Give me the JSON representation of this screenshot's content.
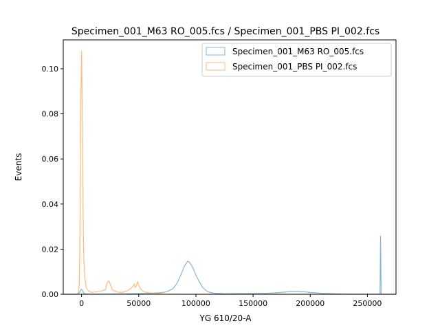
{
  "chart_data": {
    "type": "line",
    "title": "Specimen_001_M63 RO_005.fcs / Specimen_001_PBS PI_002.fcs",
    "xlabel": "YG 610/20-A",
    "ylabel": "Events",
    "xlim": [
      -16000,
      275000
    ],
    "ylim": [
      0,
      0.1128
    ],
    "xticks": [
      0,
      50000,
      100000,
      150000,
      200000,
      250000
    ],
    "xtick_labels": [
      "0",
      "50000",
      "100000",
      "150000",
      "200000",
      "250000"
    ],
    "yticks": [
      0,
      0.02,
      0.04,
      0.06,
      0.08,
      0.1
    ],
    "ytick_labels": [
      "0.00",
      "0.02",
      "0.04",
      "0.06",
      "0.08",
      "0.10"
    ],
    "grid": false,
    "legend_position": "top-right",
    "series": [
      {
        "name": "Specimen_001_M63 RO_005.fcs",
        "color": "#1f77b4",
        "x": [
          -16000,
          -4000,
          -2000,
          -1000,
          0,
          1000,
          2000,
          4000,
          8000,
          20000,
          40000,
          60000,
          70000,
          75000,
          80000,
          83000,
          86000,
          88000,
          90000,
          92000,
          93000,
          94000,
          96000,
          98000,
          100000,
          103000,
          106000,
          110000,
          115000,
          125000,
          140000,
          150000,
          160000,
          170000,
          178000,
          185000,
          190000,
          195000,
          200000,
          210000,
          230000,
          250000,
          260000,
          261000,
          261500,
          262000,
          262500,
          275000
        ],
        "y": [
          0,
          0,
          0.0006,
          0.0016,
          0.0022,
          0.0014,
          0.0004,
          0.0001,
          5e-05,
          0.0001,
          0.0002,
          0.0004,
          0.0007,
          0.0012,
          0.0025,
          0.0045,
          0.0075,
          0.01,
          0.0125,
          0.014,
          0.0147,
          0.0143,
          0.013,
          0.011,
          0.0085,
          0.0055,
          0.003,
          0.0012,
          0.0005,
          0.0002,
          0.0003,
          0.0003,
          0.0004,
          0.0006,
          0.001,
          0.0013,
          0.0013,
          0.0011,
          0.0008,
          0.0004,
          0.0001,
          5e-05,
          0.0001,
          0.0003,
          0.026,
          0.0003,
          0,
          0
        ]
      },
      {
        "name": "Specimen_001_PBS PI_002.fcs",
        "color": "#ff7f0e",
        "x": [
          -16000,
          -3000,
          -2000,
          -1500,
          -1000,
          -500,
          0,
          500,
          1000,
          1500,
          2000,
          3000,
          4000,
          6000,
          8000,
          10000,
          14000,
          18000,
          21000,
          22000,
          23000,
          24000,
          25000,
          26000,
          27000,
          29000,
          31000,
          35000,
          40000,
          43000,
          45000,
          46000,
          47000,
          48000,
          49000,
          50000,
          52000,
          55000,
          60000,
          65000,
          70000,
          72000,
          80000,
          100000,
          275000
        ],
        "y": [
          0,
          0,
          0.004,
          0.02,
          0.05,
          0.09,
          0.108,
          0.09,
          0.06,
          0.03,
          0.015,
          0.007,
          0.003,
          0.0015,
          0.001,
          0.0008,
          0.0012,
          0.0015,
          0.002,
          0.0045,
          0.0055,
          0.006,
          0.0045,
          0.0035,
          0.002,
          0.0015,
          0.001,
          0.0008,
          0.0015,
          0.0025,
          0.0035,
          0.0045,
          0.003,
          0.004,
          0.0055,
          0.004,
          0.002,
          0.001,
          0.0006,
          0.0004,
          0.0002,
          0.0001,
          5e-05,
          0,
          0
        ]
      }
    ]
  }
}
